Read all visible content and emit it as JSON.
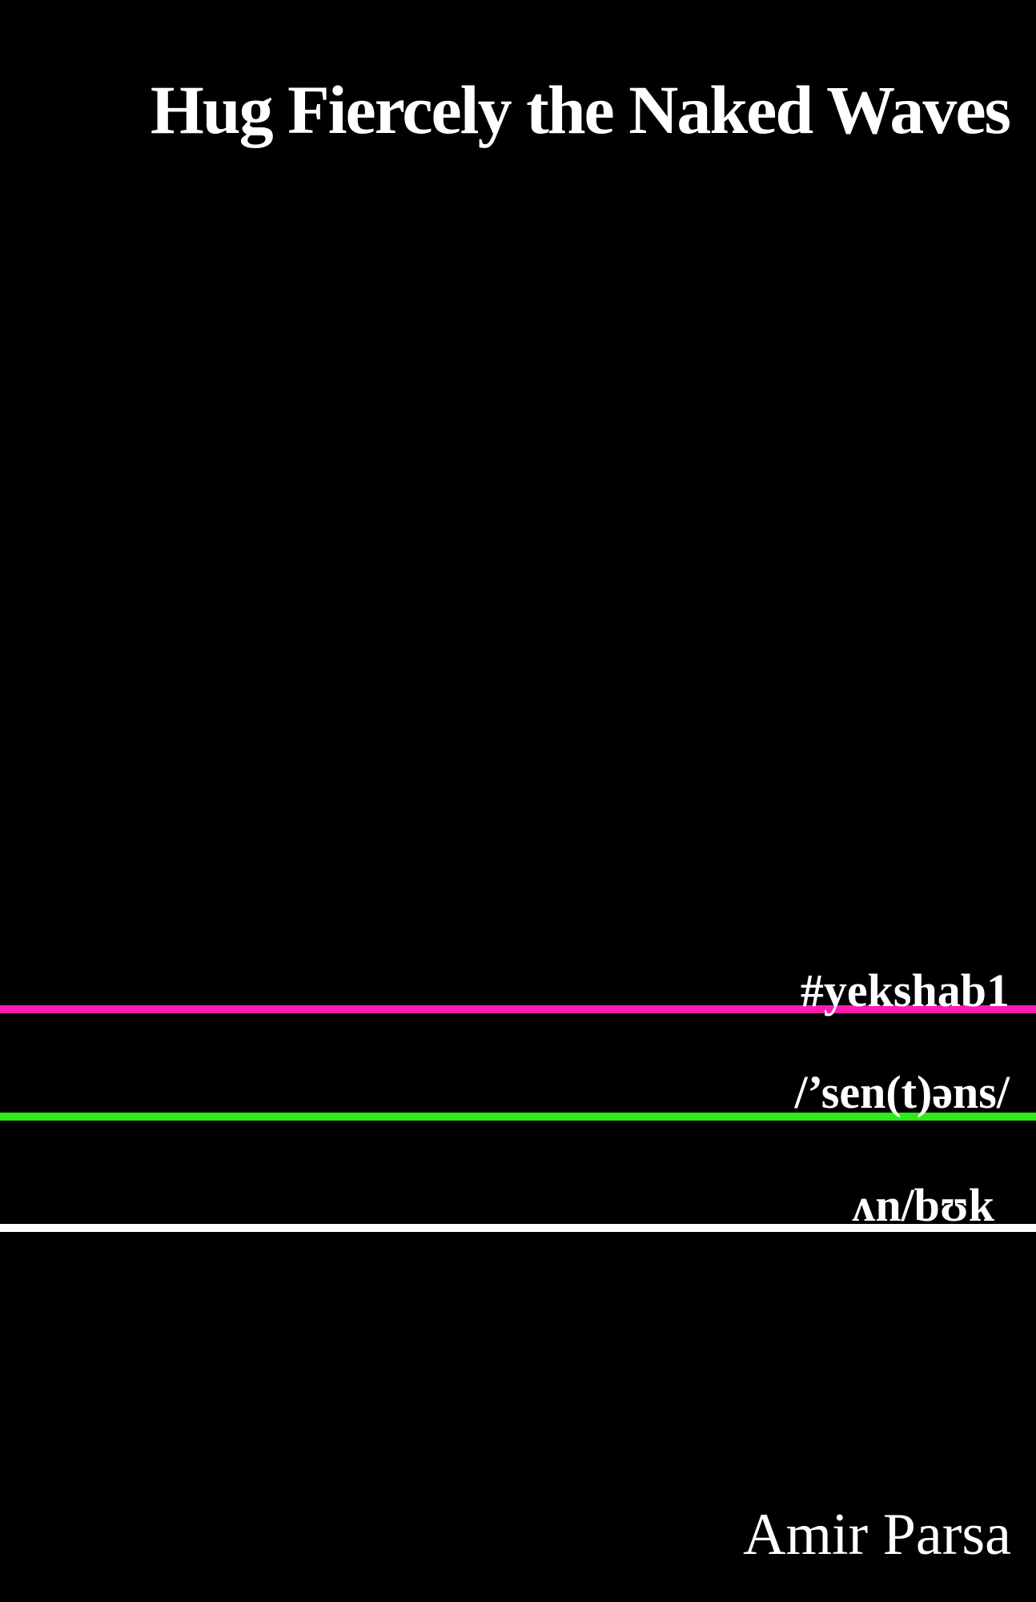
{
  "cover": {
    "title": "Hug Fiercely the Naked Waves",
    "lines": [
      "#yekshab1",
      "/’sen(t)əns/",
      "ʌn/bʊk"
    ],
    "author": "Amir Parsa"
  }
}
